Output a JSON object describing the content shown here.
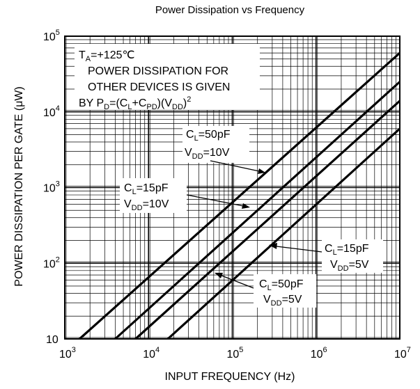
{
  "chart_data": {
    "type": "line",
    "title": "Power Dissipation vs Frequency",
    "xlabel": "INPUT FREQUENCY (Hz)",
    "ylabel": "POWER DISSIPATION PER GATE (μW)",
    "x_scale": "log",
    "y_scale": "log",
    "xlim": [
      1000,
      10000000
    ],
    "ylim": [
      10,
      100000
    ],
    "grid": true,
    "x_ticks": [
      {
        "base": "10",
        "exp": "3"
      },
      {
        "base": "10",
        "exp": "4"
      },
      {
        "base": "10",
        "exp": "5"
      },
      {
        "base": "10",
        "exp": "6"
      },
      {
        "base": "10",
        "exp": "7"
      }
    ],
    "y_ticks": [
      {
        "base": "10",
        "exp": ""
      },
      {
        "base": "10",
        "exp": "2"
      },
      {
        "base": "10",
        "exp": "3"
      },
      {
        "base": "10",
        "exp": "4"
      },
      {
        "base": "10",
        "exp": "5"
      }
    ],
    "series": [
      {
        "label_id": "cl50-vdd10",
        "x": [
          1500,
          10000000
        ],
        "y": [
          10,
          60000
        ]
      },
      {
        "label_id": "cl15-vdd10",
        "x": [
          4000,
          10000000
        ],
        "y": [
          10,
          25000
        ]
      },
      {
        "label_id": "cl50-vdd5",
        "x": [
          7000,
          10000000
        ],
        "y": [
          10,
          14000
        ]
      },
      {
        "label_id": "cl15-vdd5",
        "x": [
          17000,
          10000000
        ],
        "y": [
          10,
          6000
        ]
      }
    ],
    "annotations": {
      "conditions": {
        "line1": {
          "t": "T",
          "t_sub": "A",
          "rest": "=+125℃"
        },
        "line2": "POWER DISSIPATION FOR",
        "line3": "OTHER DEVICES IS GIVEN",
        "line4": {
          "a": "BY P",
          "a_sub": "D",
          "b": "=(C",
          "b_sub": "L",
          "c": "+C",
          "c_sub": "PD",
          "d": ")(V",
          "d_sub": "DD",
          "e": ")",
          "e_sup": "2"
        }
      },
      "cl50_vdd10": {
        "c": "C",
        "c_sub": "L",
        "c_val": "=50pF",
        "v": "V",
        "v_sub": "DD",
        "v_val": "=10V"
      },
      "cl15_vdd10": {
        "c": "C",
        "c_sub": "L",
        "c_val": "=15pF",
        "v": "V",
        "v_sub": "DD",
        "v_val": "=10V"
      },
      "cl15_vdd5": {
        "c": "C",
        "c_sub": "L",
        "c_val": "=15pF",
        "v": "V",
        "v_sub": "DD",
        "v_val": "=5V"
      },
      "cl50_vdd5": {
        "c": "C",
        "c_sub": "L",
        "c_val": "=50pF",
        "v": "V",
        "v_sub": "DD",
        "v_val": "=5V"
      }
    }
  }
}
